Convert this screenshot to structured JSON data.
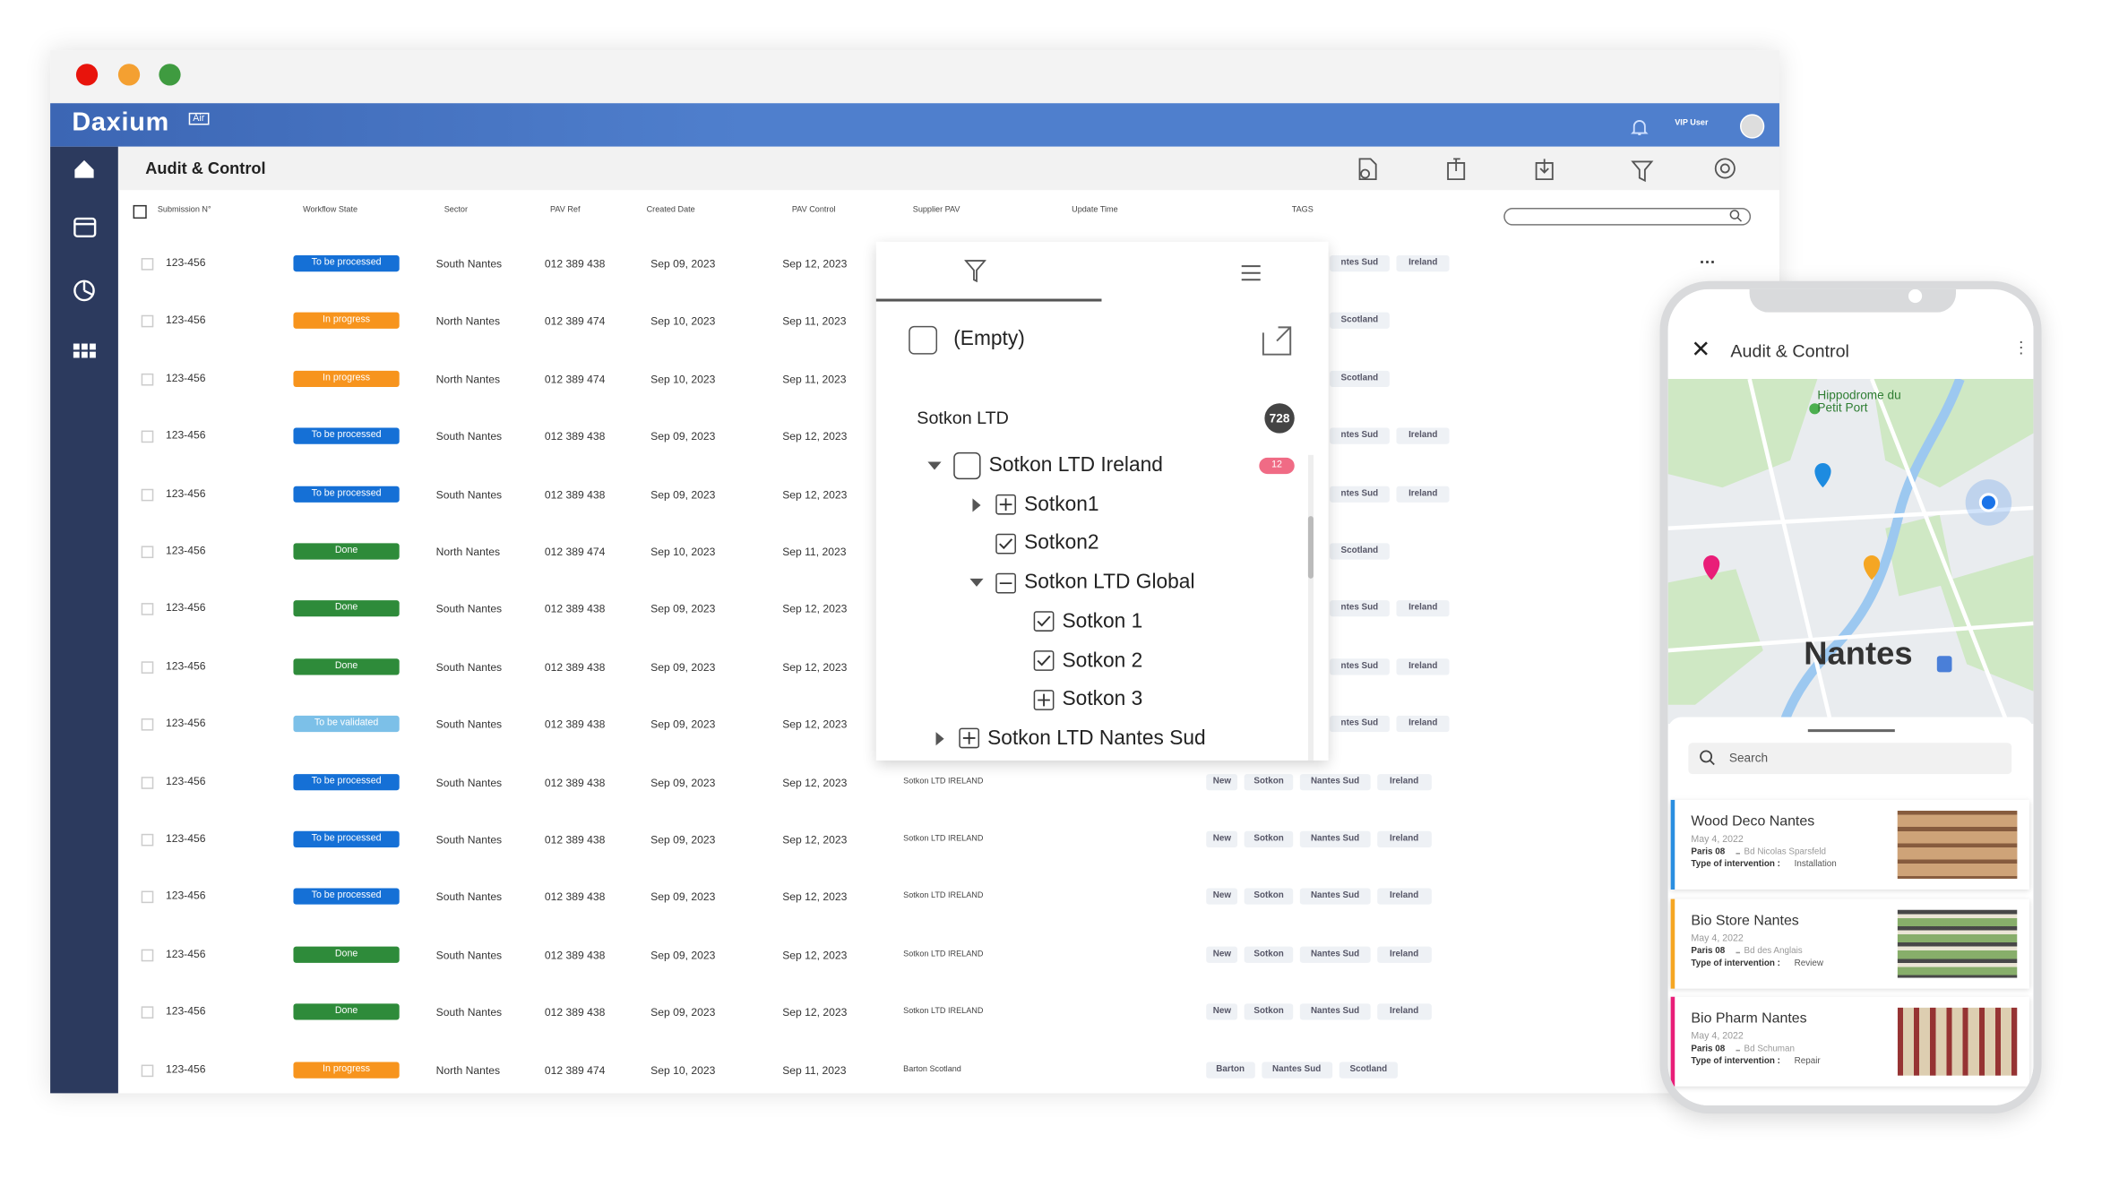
{
  "window": {
    "logo": "Daxium",
    "logo_badge": "Air",
    "user": "VIP User",
    "page_title": "Audit & Control"
  },
  "table": {
    "columns": [
      "Submission N°",
      "Workflow State",
      "Sector",
      "PAV Ref",
      "Created Date",
      "PAV Control",
      "Supplier PAV",
      "Update Time",
      "TAGS"
    ],
    "state_colors": {
      "To be processed": "#1570d6",
      "In progress": "#f7941d",
      "Done": "#2e8b3a",
      "To be validated": "#7cc0e8"
    },
    "rows": [
      {
        "id": "123-456",
        "state": "To be processed",
        "sector": "South Nantes",
        "pav_ref": "012 389 438",
        "created": "Sep 09, 2023",
        "pav_control": "Sep 12, 2023",
        "tags": [
          "ntes Sud",
          "Ireland"
        ]
      },
      {
        "id": "123-456",
        "state": "In progress",
        "sector": "North Nantes",
        "pav_ref": "012 389 474",
        "created": "Sep 10, 2023",
        "pav_control": "Sep 11, 2023",
        "tags": [
          "Scotland"
        ]
      },
      {
        "id": "123-456",
        "state": "In progress",
        "sector": "North Nantes",
        "pav_ref": "012 389 474",
        "created": "Sep 10, 2023",
        "pav_control": "Sep 11, 2023",
        "tags": [
          "Scotland"
        ]
      },
      {
        "id": "123-456",
        "state": "To be processed",
        "sector": "South Nantes",
        "pav_ref": "012 389 438",
        "created": "Sep 09, 2023",
        "pav_control": "Sep 12, 2023",
        "tags": [
          "ntes Sud",
          "Ireland"
        ]
      },
      {
        "id": "123-456",
        "state": "To be processed",
        "sector": "South Nantes",
        "pav_ref": "012 389 438",
        "created": "Sep 09, 2023",
        "pav_control": "Sep 12, 2023",
        "tags": [
          "ntes Sud",
          "Ireland"
        ]
      },
      {
        "id": "123-456",
        "state": "Done",
        "sector": "North Nantes",
        "pav_ref": "012 389 474",
        "created": "Sep 10, 2023",
        "pav_control": "Sep 11, 2023",
        "tags": [
          "Scotland"
        ]
      },
      {
        "id": "123-456",
        "state": "Done",
        "sector": "South Nantes",
        "pav_ref": "012 389 438",
        "created": "Sep 09, 2023",
        "pav_control": "Sep 12, 2023",
        "tags": [
          "ntes Sud",
          "Ireland"
        ]
      },
      {
        "id": "123-456",
        "state": "Done",
        "sector": "South Nantes",
        "pav_ref": "012 389 438",
        "created": "Sep 09, 2023",
        "pav_control": "Sep 12, 2023",
        "tags": [
          "ntes Sud",
          "Ireland"
        ]
      },
      {
        "id": "123-456",
        "state": "To be validated",
        "sector": "South Nantes",
        "pav_ref": "012 389 438",
        "created": "Sep 09, 2023",
        "pav_control": "Sep 12, 2023",
        "tags": [
          "ntes Sud",
          "Ireland"
        ]
      },
      {
        "id": "123-456",
        "state": "To be processed",
        "sector": "South Nantes",
        "pav_ref": "012 389 438",
        "created": "Sep 09, 2023",
        "pav_control": "Sep 12, 2023",
        "supplier": "Sotkon LTD IRELAND",
        "tags": [
          "New",
          "Sotkon",
          "Nantes Sud",
          "Ireland"
        ]
      },
      {
        "id": "123-456",
        "state": "To be processed",
        "sector": "South Nantes",
        "pav_ref": "012 389 438",
        "created": "Sep 09, 2023",
        "pav_control": "Sep 12, 2023",
        "supplier": "Sotkon LTD IRELAND",
        "tags": [
          "New",
          "Sotkon",
          "Nantes Sud",
          "Ireland"
        ]
      },
      {
        "id": "123-456",
        "state": "To be processed",
        "sector": "South Nantes",
        "pav_ref": "012 389 438",
        "created": "Sep 09, 2023",
        "pav_control": "Sep 12, 2023",
        "supplier": "Sotkon LTD IRELAND",
        "tags": [
          "New",
          "Sotkon",
          "Nantes Sud",
          "Ireland"
        ]
      },
      {
        "id": "123-456",
        "state": "Done",
        "sector": "South Nantes",
        "pav_ref": "012 389 438",
        "created": "Sep 09, 2023",
        "pav_control": "Sep 12, 2023",
        "supplier": "Sotkon LTD IRELAND",
        "tags": [
          "New",
          "Sotkon",
          "Nantes Sud",
          "Ireland"
        ]
      },
      {
        "id": "123-456",
        "state": "Done",
        "sector": "South Nantes",
        "pav_ref": "012 389 438",
        "created": "Sep 09, 2023",
        "pav_control": "Sep 12, 2023",
        "supplier": "Sotkon LTD IRELAND",
        "tags": [
          "New",
          "Sotkon",
          "Nantes Sud",
          "Ireland"
        ]
      },
      {
        "id": "123-456",
        "state": "In progress",
        "sector": "North Nantes",
        "pav_ref": "012 389 474",
        "created": "Sep 10, 2023",
        "pav_control": "Sep 11, 2023",
        "supplier": "Barton Scotland",
        "tags": [
          "Barton",
          "Nantes Sud",
          "Scotland"
        ]
      }
    ]
  },
  "filter_popup": {
    "empty_option": "(Empty)",
    "group": "Sotkon LTD",
    "group_count": 728,
    "tree": [
      {
        "label": "Sotkon LTD Ireland",
        "level": 0,
        "expand": "open",
        "box": "empty",
        "badge": 12
      },
      {
        "label": "Sotkon1",
        "level": 1,
        "expand": "closed",
        "box": "plus"
      },
      {
        "label": "Sotkon2",
        "level": 1,
        "box": "checked"
      },
      {
        "label": "Sotkon LTD Global",
        "level": 1,
        "expand": "open",
        "box": "minus"
      },
      {
        "label": "Sotkon 1",
        "level": 2,
        "box": "checked"
      },
      {
        "label": "Sotkon 2",
        "level": 2,
        "box": "checked"
      },
      {
        "label": "Sotkon 3",
        "level": 2,
        "box": "plus"
      },
      {
        "label": "Sotkon LTD Nantes Sud",
        "level": 0,
        "expand": "closed",
        "box": "plus"
      }
    ]
  },
  "mobile": {
    "title": "Audit & Control",
    "map_place": "Hippodrome du Petit Port",
    "map_city": "Nantes",
    "search_placeholder": "Search",
    "cards": [
      {
        "title": "Wood Deco Nantes",
        "date": "May 4, 2022",
        "district": "Paris 08",
        "address": "Bd Nicolas Sparsfeld",
        "intervention_label": "Type of intervention :",
        "intervention": "Installation",
        "color": "#2a8ee0"
      },
      {
        "title": "Bio Store Nantes",
        "date": "May 4, 2022",
        "district": "Paris 08",
        "address": "Bd des Anglais",
        "intervention_label": "Type of intervention :",
        "intervention": "Review",
        "color": "#f5a623"
      },
      {
        "title": "Bio Pharm Nantes",
        "date": "May 4, 2022",
        "district": "Paris 08",
        "address": "Bd Schuman",
        "intervention_label": "Type of intervention :",
        "intervention": "Repair",
        "color": "#e91e78"
      }
    ]
  }
}
